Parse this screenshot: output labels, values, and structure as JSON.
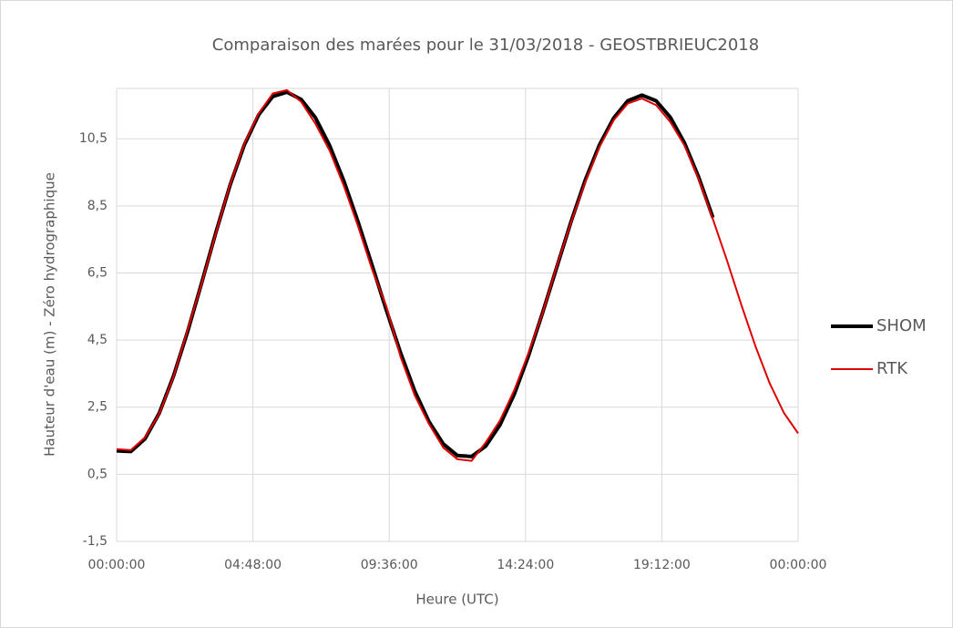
{
  "chart_data": {
    "type": "line",
    "title": "Comparaison des marées pour le 31/03/2018 - GEOSTBRIEUC2018",
    "xlabel": "Heure (UTC)",
    "ylabel": "Hauteur d'eau (m) - Zéro hydrographique",
    "x": [
      0,
      0.5,
      1,
      1.5,
      2,
      2.5,
      3,
      3.5,
      4,
      4.5,
      5,
      5.5,
      6,
      6.5,
      7,
      7.5,
      8,
      8.5,
      9,
      9.5,
      10,
      10.5,
      11,
      11.5,
      12,
      12.5,
      13,
      13.5,
      14,
      14.5,
      15,
      15.5,
      16,
      16.5,
      17,
      17.5,
      18,
      18.5,
      19,
      19.5,
      20,
      20.5,
      21,
      21.5,
      22,
      22.5,
      23,
      23.5,
      24
    ],
    "series": [
      {
        "name": "SHOM",
        "color": "#000000",
        "values": [
          1.2,
          1.18,
          1.56,
          2.32,
          3.42,
          4.75,
          6.22,
          7.72,
          9.13,
          10.32,
          11.21,
          11.76,
          11.89,
          11.67,
          11.13,
          10.3,
          9.25,
          8.03,
          6.72,
          5.39,
          4.12,
          2.98,
          2.07,
          1.41,
          1.06,
          1.03,
          1.34,
          1.97,
          2.88,
          4.02,
          5.31,
          6.67,
          8.02,
          9.26,
          10.31,
          11.11,
          11.63,
          11.8,
          11.63,
          11.14,
          10.37,
          9.35,
          8.15,
          null,
          null,
          null,
          null,
          null,
          null
        ]
      },
      {
        "name": "RTK",
        "color": "#e00000",
        "values": [
          1.25,
          1.22,
          1.6,
          2.3,
          3.4,
          4.8,
          6.2,
          7.7,
          9.15,
          10.35,
          11.25,
          11.85,
          11.95,
          11.6,
          10.95,
          10.15,
          9.1,
          7.9,
          6.6,
          5.5,
          4.0,
          2.85,
          2.0,
          1.3,
          0.95,
          0.9,
          1.45,
          2.1,
          3.0,
          4.1,
          5.3,
          6.7,
          8.0,
          9.2,
          10.25,
          11.05,
          11.55,
          11.7,
          11.5,
          11.0,
          10.3,
          9.3,
          8.1,
          6.86,
          5.55,
          4.31,
          3.21,
          2.33,
          1.72
        ]
      }
    ],
    "xlim": [
      0,
      24
    ],
    "xticks": [
      {
        "value": 0,
        "label": "00:00:00"
      },
      {
        "value": 4.8,
        "label": "04:48:00"
      },
      {
        "value": 9.6,
        "label": "09:36:00"
      },
      {
        "value": 14.4,
        "label": "14:24:00"
      },
      {
        "value": 19.2,
        "label": "19:12:00"
      },
      {
        "value": 24,
        "label": "00:00:00"
      }
    ],
    "ylim": [
      -1.5,
      12
    ],
    "yticks": [
      {
        "value": -1.5,
        "label": "-1,5"
      },
      {
        "value": 0.5,
        "label": "0,5"
      },
      {
        "value": 2.5,
        "label": "2,5"
      },
      {
        "value": 4.5,
        "label": "4,5"
      },
      {
        "value": 6.5,
        "label": "6,5"
      },
      {
        "value": 8.5,
        "label": "8,5"
      },
      {
        "value": 10.5,
        "label": "10,5"
      }
    ],
    "grid": true,
    "legend": "right"
  }
}
